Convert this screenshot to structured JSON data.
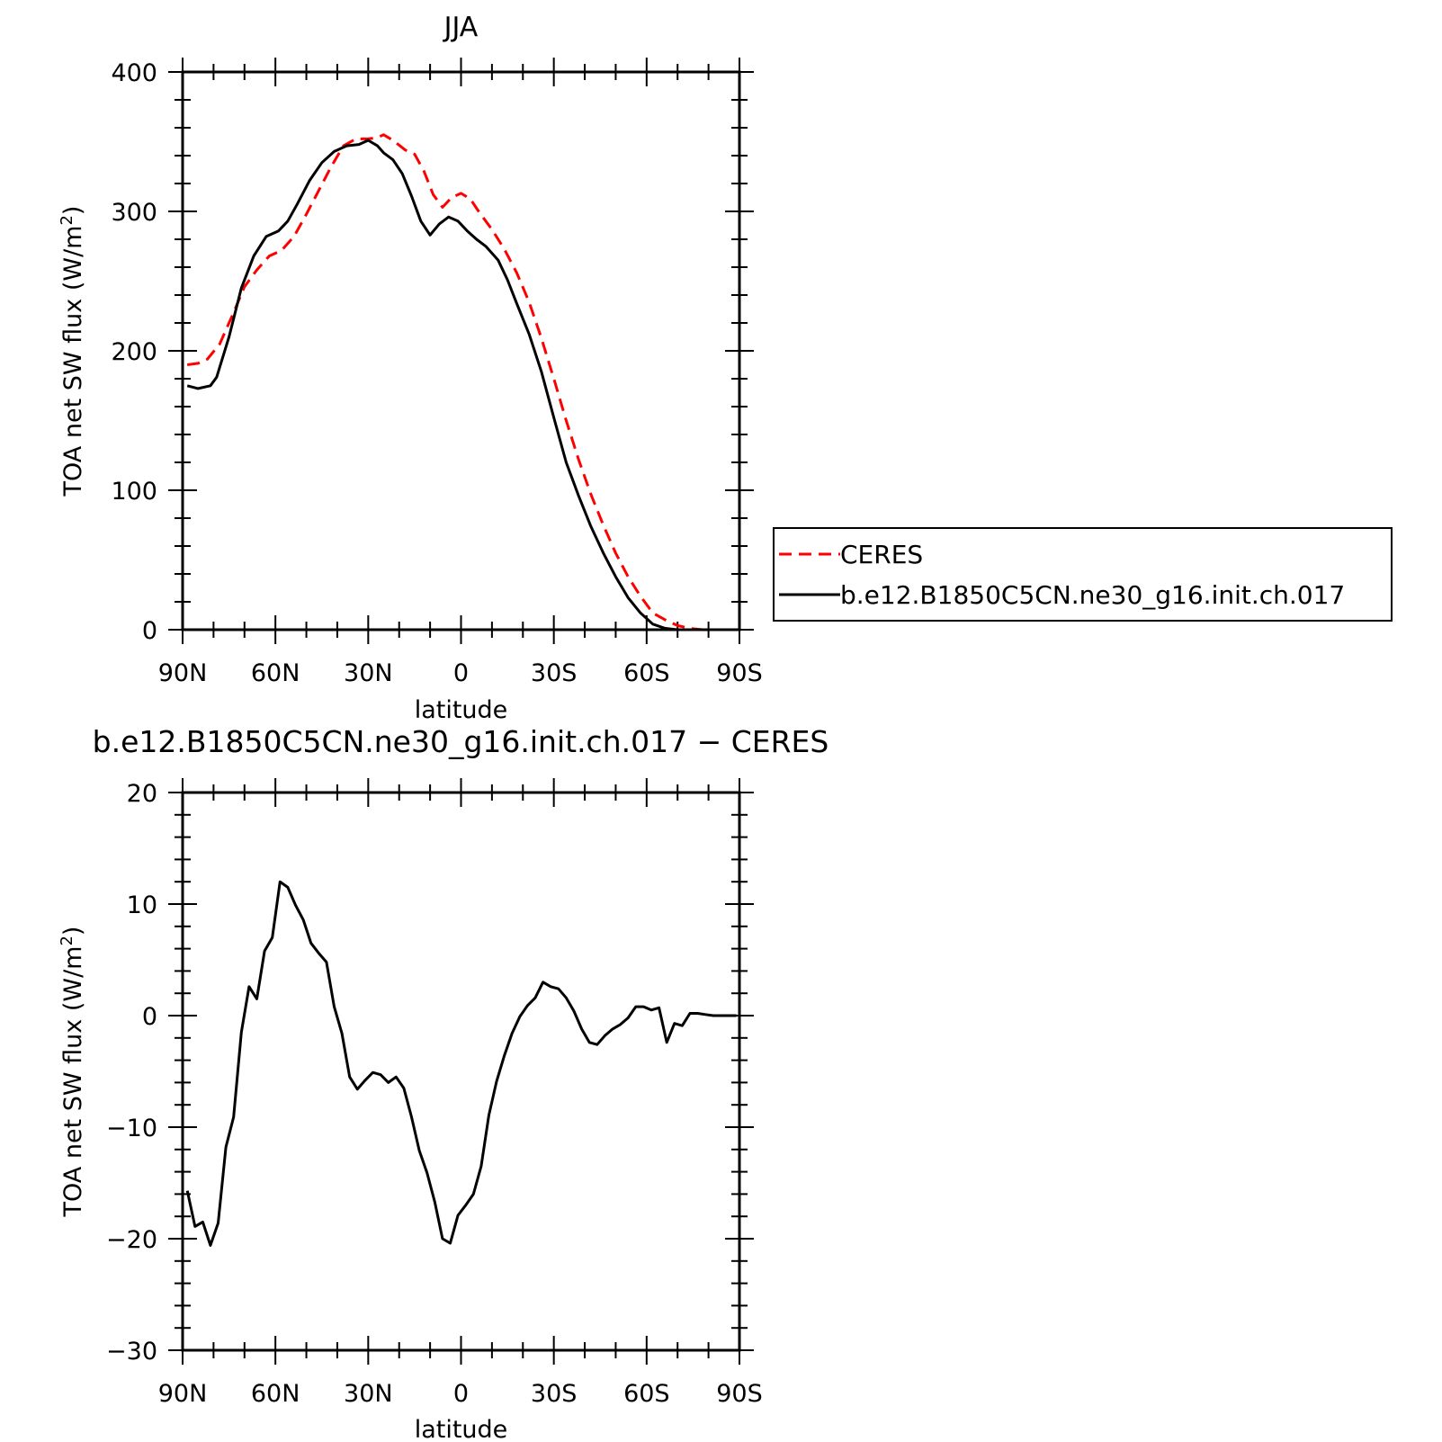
{
  "chart_data": [
    {
      "type": "line",
      "title": "JJA",
      "xlabel": "latitude",
      "ylabel": "TOA net SW flux (W/m",
      "ylabel_sup": "2",
      "ylabel_close": ")",
      "xlim": [
        90,
        -90
      ],
      "ylim": [
        0,
        400
      ],
      "xticks": [
        90,
        60,
        30,
        0,
        -30,
        -60,
        -90
      ],
      "xtick_labels": [
        "90N",
        "60N",
        "30N",
        "0",
        "30S",
        "60S",
        "90S"
      ],
      "yticks": [
        0,
        100,
        200,
        300,
        400
      ],
      "ytick_labels": [
        "0",
        "100",
        "200",
        "300",
        "400"
      ],
      "legend_position": "right",
      "series": [
        {
          "name": "CERES",
          "color": "#ff0000",
          "dash": "dashed",
          "x": [
            88.5,
            85,
            82,
            78,
            74,
            70,
            66,
            62,
            58,
            54,
            50,
            46,
            42,
            38,
            34,
            30,
            27,
            25,
            22,
            18,
            15,
            12,
            9,
            6,
            3,
            0,
            -3,
            -6,
            -10,
            -14,
            -18,
            -22,
            -26,
            -30,
            -34,
            -38,
            -42,
            -46,
            -50,
            -54,
            -58,
            -62,
            -66,
            -70,
            -74,
            -78,
            -82,
            -86,
            -90
          ],
          "y": [
            190,
            191,
            194,
            205,
            225,
            246,
            258,
            268,
            272,
            282,
            298,
            315,
            332,
            347,
            352,
            352,
            353,
            355,
            351,
            344,
            341,
            329,
            312,
            303,
            310,
            313,
            309,
            299,
            287,
            273,
            256,
            235,
            209,
            180,
            150,
            122,
            97,
            75,
            55,
            38,
            24,
            12,
            7,
            3,
            1,
            0,
            0,
            0,
            0
          ]
        },
        {
          "name": "b.e12.B1850C5CN.ne30_g16.init.ch.017",
          "color": "#000000",
          "dash": "solid",
          "x": [
            88.5,
            85,
            81,
            79,
            75,
            71,
            67,
            63,
            59,
            56,
            53,
            49,
            45,
            41,
            37,
            33,
            30,
            27,
            25,
            22,
            19,
            16,
            13,
            10,
            7,
            4,
            1,
            -2,
            -5,
            -8,
            -12,
            -15,
            -18,
            -22,
            -26,
            -30,
            -34,
            -38,
            -42,
            -46,
            -50,
            -54,
            -58,
            -62,
            -66,
            -70,
            -74,
            -78,
            -82,
            -86,
            -90
          ],
          "y": [
            175,
            173,
            175,
            181,
            210,
            245,
            268,
            282,
            286,
            293,
            305,
            322,
            335,
            343,
            347,
            348,
            351,
            347,
            342,
            337,
            327,
            311,
            293,
            283,
            291,
            296,
            293,
            286,
            280,
            275,
            265,
            251,
            234,
            212,
            185,
            152,
            120,
            96,
            74,
            55,
            38,
            23,
            12,
            4,
            1,
            0,
            0,
            0,
            0,
            0,
            0
          ]
        }
      ]
    },
    {
      "type": "line",
      "title": "b.e12.B1850C5CN.ne30_g16.init.ch.017 − CERES",
      "xlabel": "latitude",
      "ylabel": "TOA net SW flux (W/m",
      "ylabel_sup": "2",
      "ylabel_close": ")",
      "xlim": [
        90,
        -90
      ],
      "ylim": [
        -30,
        20
      ],
      "xticks": [
        90,
        60,
        30,
        0,
        -30,
        -60,
        -90
      ],
      "xtick_labels": [
        "90N",
        "60N",
        "30N",
        "0",
        "30S",
        "60S",
        "90S"
      ],
      "yticks": [
        -30,
        -20,
        -10,
        0,
        10,
        20
      ],
      "ytick_labels": [
        "−30",
        "−20",
        "−10",
        "0",
        "10",
        "20"
      ],
      "series": [
        {
          "color": "#000000",
          "dash": "solid",
          "x": [
            88.5,
            86,
            83.5,
            81,
            78.5,
            76,
            73.5,
            71,
            68.5,
            66,
            63.5,
            61,
            58.5,
            56,
            53.5,
            51,
            48.5,
            46,
            43.5,
            41,
            38.5,
            36,
            33.5,
            31,
            28.5,
            26,
            23.5,
            21,
            18.5,
            16,
            13.5,
            11,
            8.5,
            6,
            3.5,
            1,
            -1.5,
            -4,
            -6.5,
            -9,
            -11.5,
            -14,
            -16.5,
            -19,
            -21.5,
            -24,
            -26.5,
            -29,
            -31.5,
            -34,
            -36.5,
            -39,
            -41.5,
            -44,
            -46.5,
            -49,
            -51.5,
            -54,
            -56.5,
            -59,
            -61.5,
            -64,
            -66.5,
            -69,
            -71.5,
            -74,
            -76.5,
            -79,
            -81.5,
            -84,
            -86.5,
            -89
          ],
          "y": [
            -15.7,
            -18.9,
            -18.5,
            -20.6,
            -18.6,
            -11.8,
            -9.1,
            -1.5,
            2.6,
            1.5,
            5.8,
            7,
            12,
            11.5,
            9.9,
            8.6,
            6.5,
            5.6,
            4.8,
            0.8,
            -1.6,
            -5.5,
            -6.6,
            -5.8,
            -5.1,
            -5.3,
            -6,
            -5.5,
            -6.5,
            -9.1,
            -12.1,
            -14.1,
            -16.7,
            -20,
            -20.4,
            -17.9,
            -17,
            -16,
            -13.5,
            -8.9,
            -5.9,
            -3.6,
            -1.6,
            -0.1,
            0.9,
            1.6,
            3,
            2.6,
            2.4,
            1.6,
            0.4,
            -1.2,
            -2.4,
            -2.6,
            -1.8,
            -1.2,
            -0.8,
            -0.2,
            0.8,
            0.8,
            0.5,
            0.7,
            -2.4,
            -0.7,
            -0.9,
            0.2,
            0.2,
            0.1,
            0,
            0,
            0,
            0
          ]
        }
      ]
    }
  ],
  "legend": {
    "entries": [
      "CERES",
      "b.e12.B1850C5CN.ne30_g16.init.ch.017"
    ]
  }
}
